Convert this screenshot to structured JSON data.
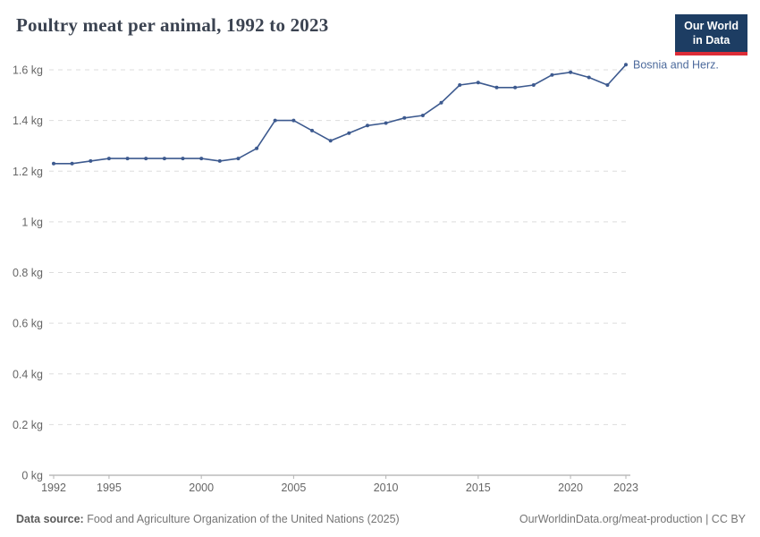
{
  "header": {
    "title": "Poultry meat per animal, 1992 to 2023",
    "logo": {
      "line1": "Our World",
      "line2": "in Data"
    }
  },
  "footer": {
    "source_label": "Data source:",
    "source_text": " Food and Agriculture Organization of the United Nations (2025)",
    "credit": "OurWorldinData.org/meat-production | CC BY"
  },
  "colors": {
    "logo_bg": "#1d3d63",
    "logo_accent": "#dd2c37",
    "title_color": "#3b4351"
  },
  "chart_data": {
    "type": "line",
    "title": "Poultry meat per animal, 1992 to 2023",
    "unit": "kg",
    "grid": "horizontal-dashed",
    "legend_position": "end-of-line-label",
    "ylim": [
      0,
      1.6
    ],
    "x": [
      1992,
      1993,
      1994,
      1995,
      1996,
      1997,
      1998,
      1999,
      2000,
      2001,
      2002,
      2003,
      2004,
      2005,
      2006,
      2007,
      2008,
      2009,
      2010,
      2011,
      2012,
      2013,
      2014,
      2015,
      2016,
      2017,
      2018,
      2019,
      2020,
      2021,
      2022,
      2023
    ],
    "series": [
      {
        "name": "Bosnia and Herz.",
        "color": "#3d5a8f",
        "label_color": "#4c6a9c",
        "values": [
          1.23,
          1.23,
          1.24,
          1.25,
          1.25,
          1.25,
          1.25,
          1.25,
          1.25,
          1.24,
          1.25,
          1.29,
          1.4,
          1.4,
          1.36,
          1.32,
          1.35,
          1.38,
          1.39,
          1.41,
          1.42,
          1.47,
          1.54,
          1.55,
          1.53,
          1.53,
          1.54,
          1.58,
          1.59,
          1.57,
          1.54,
          1.62
        ]
      }
    ],
    "y_ticks": [
      {
        "value": 0,
        "label": "0 kg"
      },
      {
        "value": 0.2,
        "label": "0.2 kg"
      },
      {
        "value": 0.4,
        "label": "0.4 kg"
      },
      {
        "value": 0.6,
        "label": "0.6 kg"
      },
      {
        "value": 0.8,
        "label": "0.8 kg"
      },
      {
        "value": 1,
        "label": "1 kg"
      },
      {
        "value": 1.2,
        "label": "1.2 kg"
      },
      {
        "value": 1.4,
        "label": "1.4 kg"
      },
      {
        "value": 1.6,
        "label": "1.6 kg"
      }
    ],
    "x_ticks": [
      {
        "value": 1992,
        "label": "1992"
      },
      {
        "value": 1995,
        "label": "1995"
      },
      {
        "value": 2000,
        "label": "2000"
      },
      {
        "value": 2005,
        "label": "2005"
      },
      {
        "value": 2010,
        "label": "2010"
      },
      {
        "value": 2015,
        "label": "2015"
      },
      {
        "value": 2020,
        "label": "2020"
      },
      {
        "value": 2023,
        "label": "2023"
      }
    ]
  }
}
